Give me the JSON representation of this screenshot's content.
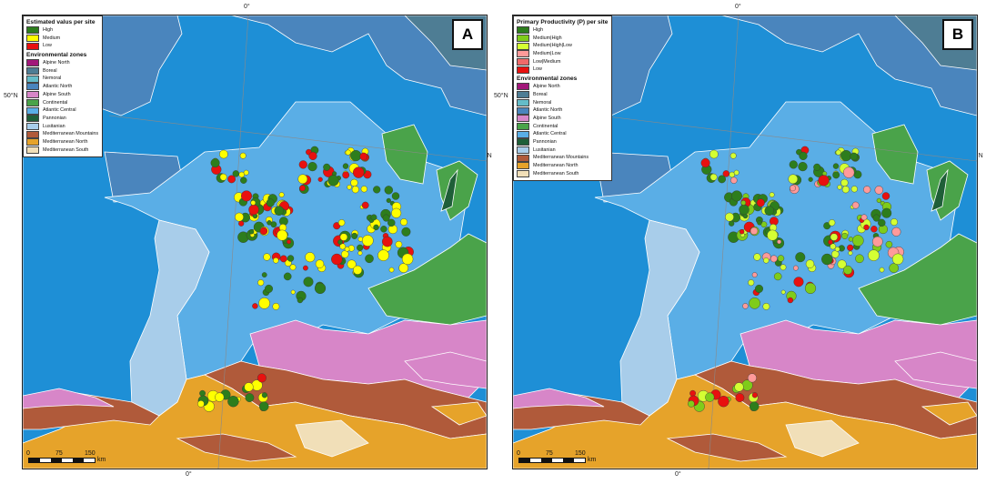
{
  "coords": {
    "lon0": "0°",
    "lat50": "50°N"
  },
  "zone_colors": {
    "sea": "#1e8fd6",
    "atlantic_central": "#5aaee6",
    "lusitanian": "#a8cdea",
    "continental": "#4aa34a",
    "pannonian": "#1f5f38",
    "alpine_south": "#d786c8",
    "mediterranean_mountains": "#b05a3a",
    "mediterranean_north": "#e6a32a",
    "mediterranean_south": "#f1dfb8",
    "atlantic_north": "#4a85bd",
    "boreal": "#4e7d94",
    "nemoral": "#64bcc8",
    "alpine_north": "#a2187a"
  },
  "panel_a": {
    "letter": "A",
    "legend_title": "Estimated valus per site",
    "classes": [
      {
        "label": "High",
        "color": "#2d7d1c"
      },
      {
        "label": "Medium",
        "color": "#ffff00"
      },
      {
        "label": "Low",
        "color": "#e8110f"
      }
    ],
    "zones_title": "Environmental zones",
    "zones": [
      {
        "label": "Alpine North",
        "color": "#a2187a"
      },
      {
        "label": "Boreal",
        "color": "#4e7d94"
      },
      {
        "label": "Nemoral",
        "color": "#64bcc8"
      },
      {
        "label": "Atlantic North",
        "color": "#4a85bd"
      },
      {
        "label": "Alpine South",
        "color": "#d786c8"
      },
      {
        "label": "Continental",
        "color": "#4aa34a"
      },
      {
        "label": "Atlantic Central",
        "color": "#5aaee6"
      },
      {
        "label": "Pannonian",
        "color": "#1f5f38"
      },
      {
        "label": "Lusitanian",
        "color": "#a8cdea"
      },
      {
        "label": "Mediterranean Mountains",
        "color": "#b05a3a"
      },
      {
        "label": "Mediterranean North",
        "color": "#e6a32a"
      },
      {
        "label": "Mediterranean South",
        "color": "#f1dfb8"
      }
    ],
    "scale": {
      "ticks": [
        "0",
        "75",
        "150"
      ],
      "unit": "km"
    }
  },
  "panel_b": {
    "letter": "B",
    "legend_title": "Primary Productivity (P) per site",
    "classes": [
      {
        "label": "High",
        "color": "#2d7d1c"
      },
      {
        "label": "Medium|High",
        "color": "#7fcc1a"
      },
      {
        "label": "Medium|High|Low",
        "color": "#d4ff33"
      },
      {
        "label": "Medium|Low",
        "color": "#ff9a9a"
      },
      {
        "label": "Low|Medium",
        "color": "#f06a6a"
      },
      {
        "label": "Low",
        "color": "#e8110f"
      }
    ],
    "zones_title": "Environmental zones",
    "zones": [
      {
        "label": "Alpine North",
        "color": "#a2187a"
      },
      {
        "label": "Boreal",
        "color": "#4e7d94"
      },
      {
        "label": "Nemoral",
        "color": "#64bcc8"
      },
      {
        "label": "Atlantic North",
        "color": "#4a85bd"
      },
      {
        "label": "Alpine South",
        "color": "#d786c8"
      },
      {
        "label": "Continental",
        "color": "#4aa34a"
      },
      {
        "label": "Atlantic Central",
        "color": "#5aaee6"
      },
      {
        "label": "Pannonian",
        "color": "#1f5f38"
      },
      {
        "label": "Lusitanian",
        "color": "#a8cdea"
      },
      {
        "label": "Mediterranean Mountains",
        "color": "#b05a3a"
      },
      {
        "label": "Mediterranean North",
        "color": "#e6a32a"
      },
      {
        "label": "Mediterranean South",
        "color": "#f1dfb8"
      }
    ],
    "scale": {
      "ticks": [
        "0",
        "75",
        "150"
      ],
      "unit": "km"
    }
  }
}
